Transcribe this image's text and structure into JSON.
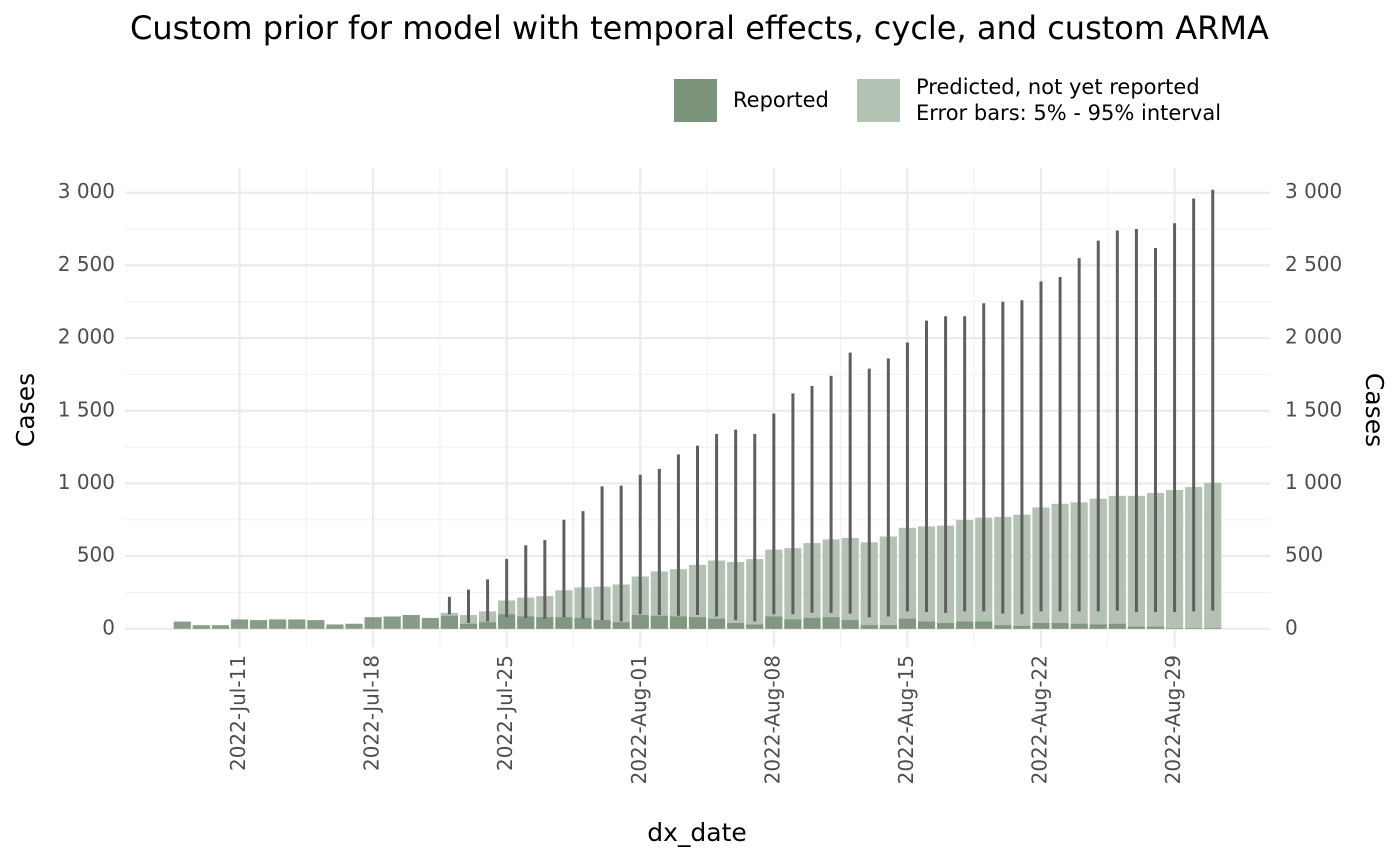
{
  "chart_data": {
    "type": "bar",
    "title": "Custom prior for model with temporal effects, cycle, and custom ARMA",
    "x_label": "dx_date",
    "y_label": "Cases",
    "y2_label": "Cases",
    "legend_note": "Error bars: 5% - 95% interval",
    "x": [
      "2022-07-08",
      "2022-07-09",
      "2022-07-10",
      "2022-07-11",
      "2022-07-12",
      "2022-07-13",
      "2022-07-14",
      "2022-07-15",
      "2022-07-16",
      "2022-07-17",
      "2022-07-18",
      "2022-07-19",
      "2022-07-20",
      "2022-07-21",
      "2022-07-22",
      "2022-07-23",
      "2022-07-24",
      "2022-07-25",
      "2022-07-26",
      "2022-07-27",
      "2022-07-28",
      "2022-07-29",
      "2022-07-30",
      "2022-07-31",
      "2022-08-01",
      "2022-08-02",
      "2022-08-03",
      "2022-08-04",
      "2022-08-05",
      "2022-08-06",
      "2022-08-07",
      "2022-08-08",
      "2022-08-09",
      "2022-08-10",
      "2022-08-11",
      "2022-08-12",
      "2022-08-13",
      "2022-08-14",
      "2022-08-15",
      "2022-08-16",
      "2022-08-17",
      "2022-08-18",
      "2022-08-19",
      "2022-08-20",
      "2022-08-21",
      "2022-08-22",
      "2022-08-23",
      "2022-08-24",
      "2022-08-25",
      "2022-08-26",
      "2022-08-27",
      "2022-08-28",
      "2022-08-29",
      "2022-08-30",
      "2022-08-31"
    ],
    "series": [
      {
        "name": "Reported",
        "color": "#7b927b",
        "values": [
          50,
          25,
          25,
          65,
          60,
          65,
          65,
          60,
          30,
          35,
          80,
          85,
          95,
          75,
          90,
          35,
          45,
          100,
          85,
          80,
          80,
          75,
          60,
          45,
          95,
          90,
          85,
          80,
          70,
          40,
          30,
          85,
          65,
          75,
          80,
          60,
          25,
          25,
          70,
          50,
          40,
          50,
          50,
          25,
          20,
          40,
          40,
          35,
          30,
          35,
          15,
          15,
          5,
          5,
          5
        ]
      },
      {
        "name": "Predicted, not yet reported",
        "color": "#b4c2b4",
        "values": [
          null,
          null,
          null,
          null,
          null,
          null,
          null,
          null,
          null,
          null,
          null,
          null,
          null,
          null,
          110,
          95,
          120,
          195,
          215,
          225,
          265,
          285,
          290,
          305,
          360,
          395,
          410,
          440,
          470,
          460,
          480,
          545,
          555,
          590,
          615,
          625,
          595,
          635,
          695,
          705,
          710,
          750,
          765,
          770,
          785,
          835,
          860,
          870,
          895,
          915,
          915,
          935,
          955,
          975,
          1005
        ],
        "lower": [
          null,
          null,
          null,
          null,
          null,
          null,
          null,
          null,
          null,
          null,
          null,
          null,
          null,
          null,
          100,
          40,
          50,
          80,
          75,
          70,
          80,
          70,
          60,
          50,
          100,
          95,
          90,
          95,
          85,
          60,
          50,
          100,
          100,
          110,
          110,
          105,
          80,
          85,
          120,
          115,
          110,
          120,
          120,
          105,
          100,
          120,
          120,
          120,
          120,
          125,
          115,
          115,
          115,
          120,
          125
        ],
        "upper": [
          null,
          null,
          null,
          null,
          null,
          null,
          null,
          null,
          null,
          null,
          null,
          null,
          null,
          null,
          220,
          270,
          340,
          480,
          575,
          610,
          750,
          810,
          980,
          985,
          1060,
          1100,
          1200,
          1260,
          1340,
          1370,
          1340,
          1480,
          1620,
          1670,
          1740,
          1900,
          1790,
          1860,
          1970,
          2120,
          2150,
          2150,
          2240,
          2250,
          2260,
          2390,
          2420,
          2550,
          2670,
          2740,
          2750,
          2620,
          2790,
          2960,
          3020
        ]
      }
    ],
    "error_color": "#5f5f5f",
    "xlim": [
      "2022-07-05",
      "2022-09-03"
    ],
    "xticks": [
      {
        "value": "2022-07-11",
        "label": "2022-Jul-11"
      },
      {
        "value": "2022-07-18",
        "label": "2022-Jul-18"
      },
      {
        "value": "2022-07-25",
        "label": "2022-Jul-25"
      },
      {
        "value": "2022-08-01",
        "label": "2022-Aug-01"
      },
      {
        "value": "2022-08-08",
        "label": "2022-Aug-08"
      },
      {
        "value": "2022-08-15",
        "label": "2022-Aug-15"
      },
      {
        "value": "2022-08-22",
        "label": "2022-Aug-22"
      },
      {
        "value": "2022-08-29",
        "label": "2022-Aug-29"
      }
    ],
    "ylim": [
      -125,
      3170
    ],
    "yticks": [
      0,
      500,
      {
        "value": 1000,
        "label": "1 000"
      },
      {
        "value": 1500,
        "label": "1 500"
      },
      {
        "value": 2000,
        "label": "2 000"
      },
      {
        "value": 2500,
        "label": "2 500"
      },
      {
        "value": 3000,
        "label": "3 000"
      }
    ],
    "y2lim": [
      -125,
      3170
    ],
    "y2ticks": [
      0,
      500,
      {
        "value": 1000,
        "label": "1 000"
      },
      {
        "value": 1500,
        "label": "1 500"
      },
      {
        "value": 2000,
        "label": "2 000"
      },
      {
        "value": 2500,
        "label": "2 500"
      },
      {
        "value": 3000,
        "label": "3 000"
      }
    ],
    "grid": true,
    "legend": "top"
  }
}
